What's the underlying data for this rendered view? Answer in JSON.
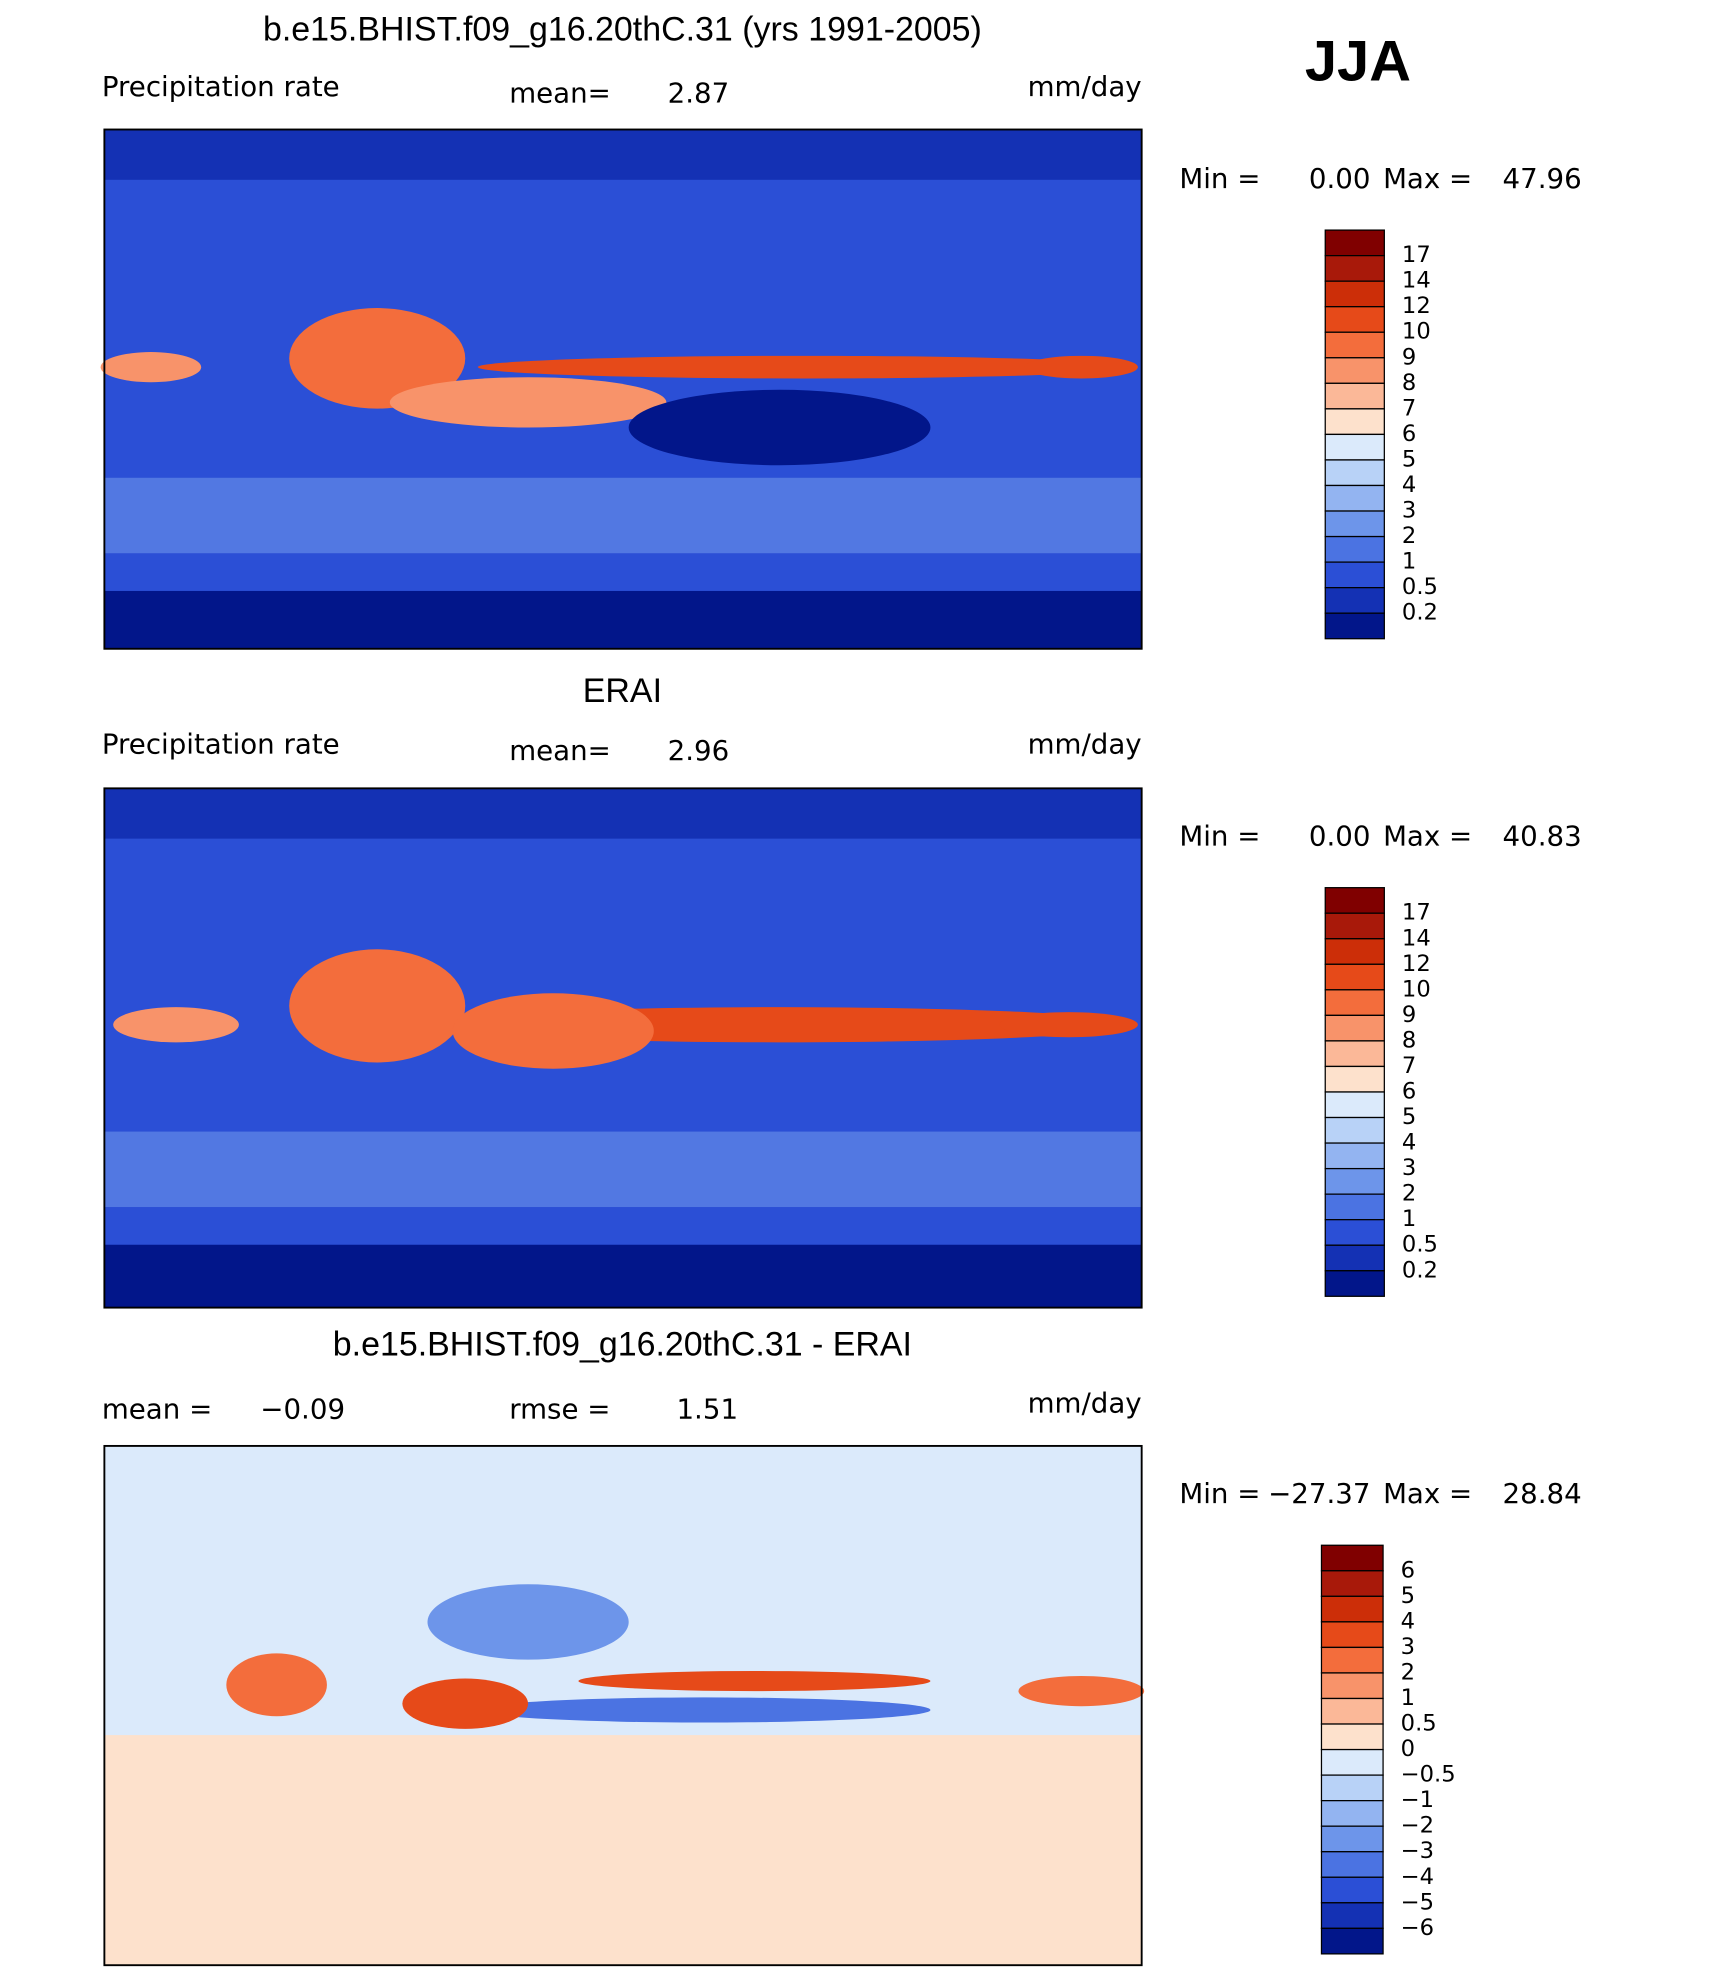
{
  "season": "JJA",
  "panels": [
    {
      "title": "b.e15.BHIST.f09_g16.20thC.31 (yrs 1991-2005)",
      "variable": "Precipitation rate",
      "stat1_label": "mean=",
      "stat1": "2.87",
      "units": "mm/day",
      "min_label": "Min =",
      "min": "0.00",
      "max_label": "Max =",
      "max": "47.96",
      "colorbar": {
        "labels": [
          "17",
          "14",
          "12",
          "10",
          "9",
          "8",
          "7",
          "6",
          "5",
          "4",
          "3",
          "2",
          "1",
          "0.5",
          "0.2"
        ],
        "colors": [
          "#800000",
          "#a8190a",
          "#cc2e08",
          "#e64a19",
          "#f36d3c",
          "#f8936a",
          "#fbb898",
          "#fde1cc",
          "#dbeafb",
          "#b8d2f7",
          "#93b4f1",
          "#6d95ea",
          "#4b73e2",
          "#2b4fd6",
          "#1431b4",
          "#02168a"
        ]
      }
    },
    {
      "title": "ERAI",
      "variable": "Precipitation rate",
      "stat1_label": "mean=",
      "stat1": "2.96",
      "units": "mm/day",
      "min_label": "Min =",
      "min": "0.00",
      "max_label": "Max =",
      "max": "40.83",
      "colorbar": {
        "labels": [
          "17",
          "14",
          "12",
          "10",
          "9",
          "8",
          "7",
          "6",
          "5",
          "4",
          "3",
          "2",
          "1",
          "0.5",
          "0.2"
        ],
        "colors": [
          "#800000",
          "#a8190a",
          "#cc2e08",
          "#e64a19",
          "#f36d3c",
          "#f8936a",
          "#fbb898",
          "#fde1cc",
          "#dbeafb",
          "#b8d2f7",
          "#93b4f1",
          "#6d95ea",
          "#4b73e2",
          "#2b4fd6",
          "#1431b4",
          "#02168a"
        ]
      }
    },
    {
      "title": "b.e15.BHIST.f09_g16.20thC.31 - ERAI",
      "stat1_label": "mean =",
      "stat1": "−0.09",
      "stat2_label": "rmse =",
      "stat2": "1.51",
      "units": "mm/day",
      "min_label": "Min =",
      "min": "−27.37",
      "max_label": "Max =",
      "max": "28.84",
      "colorbar": {
        "labels": [
          "6",
          "5",
          "4",
          "3",
          "2",
          "1",
          "0.5",
          "0",
          "−0.5",
          "−1",
          "−2",
          "−3",
          "−4",
          "−5",
          "−6"
        ],
        "colors": [
          "#800000",
          "#a8190a",
          "#cc2e08",
          "#e64a19",
          "#f36d3c",
          "#f8936a",
          "#fbb898",
          "#fde1cc",
          "#dbeafb",
          "#b8d2f7",
          "#93b4f1",
          "#6d95ea",
          "#4b73e2",
          "#2b4fd6",
          "#1431b4",
          "#02168a"
        ]
      }
    }
  ]
}
